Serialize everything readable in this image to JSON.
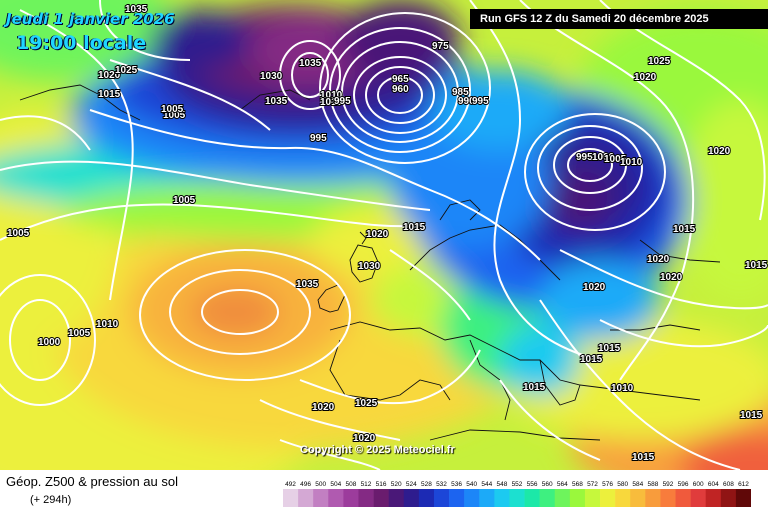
{
  "header": {
    "run_label": "Run GFS 12 Z du Samedi 20 décembre 2025",
    "valid_date": "Jeudi 1 janvier 2026",
    "valid_time": "19:00 locale"
  },
  "footer": {
    "title": "Géop. Z500 & pression au sol",
    "lead": "(+ 294h)",
    "copyright": "Copyright © 2025 Meteociel.fr"
  },
  "scale": {
    "values": [
      "492",
      "496",
      "500",
      "504",
      "508",
      "512",
      "516",
      "520",
      "524",
      "528",
      "532",
      "536",
      "540",
      "544",
      "548",
      "552",
      "556",
      "560",
      "564",
      "568",
      "572",
      "576",
      "580",
      "584",
      "588",
      "592",
      "596",
      "600",
      "604",
      "608",
      "612"
    ],
    "colors": [
      "#e6d0e6",
      "#d4a8d4",
      "#c27fc2",
      "#b05ab0",
      "#9c3c9c",
      "#842a84",
      "#6a1c6e",
      "#4a1878",
      "#2e1c8e",
      "#1c2ab4",
      "#1c46d8",
      "#1c64f0",
      "#1c86f8",
      "#1caaf8",
      "#1ccaf0",
      "#1ce0d0",
      "#1ce8a8",
      "#3ef080",
      "#6ef45c",
      "#9af83c",
      "#c6f83c",
      "#ecf03c",
      "#f8d83c",
      "#f8bc3c",
      "#f89c3c",
      "#f87c3c",
      "#f05a3c",
      "#e03c3c",
      "#c02424",
      "#901414",
      "#600808"
    ]
  },
  "pressure_labels": [
    {
      "text": "1035"
    },
    {
      "text": "1020"
    },
    {
      "text": "1025"
    },
    {
      "text": "1015"
    },
    {
      "text": "1005"
    },
    {
      "text": "1005"
    },
    {
      "text": "1005"
    },
    {
      "text": "1000"
    },
    {
      "text": "1005"
    },
    {
      "text": "1010"
    },
    {
      "text": "1035"
    },
    {
      "text": "1030"
    },
    {
      "text": "1020"
    },
    {
      "text": "1015"
    },
    {
      "text": "1025"
    },
    {
      "text": "1020"
    },
    {
      "text": "1020"
    },
    {
      "text": "975"
    },
    {
      "text": "965"
    },
    {
      "text": "960"
    },
    {
      "text": "985"
    },
    {
      "text": "990"
    },
    {
      "text": "995"
    },
    {
      "text": "995"
    },
    {
      "text": "1035"
    },
    {
      "text": "1035"
    },
    {
      "text": "1030"
    },
    {
      "text": "1010"
    },
    {
      "text": "1010"
    },
    {
      "text": "995"
    },
    {
      "text": "1005"
    },
    {
      "text": "1025"
    },
    {
      "text": "1020"
    },
    {
      "text": "1020"
    },
    {
      "text": "995"
    },
    {
      "text": "1000"
    },
    {
      "text": "1005"
    },
    {
      "text": "1010"
    },
    {
      "text": "1015"
    },
    {
      "text": "1020"
    },
    {
      "text": "1020"
    },
    {
      "text": "1020"
    },
    {
      "text": "1015"
    },
    {
      "text": "1015"
    },
    {
      "text": "1015"
    },
    {
      "text": "1010"
    },
    {
      "text": "1015"
    },
    {
      "text": "1015"
    },
    {
      "text": "1015"
    }
  ]
}
